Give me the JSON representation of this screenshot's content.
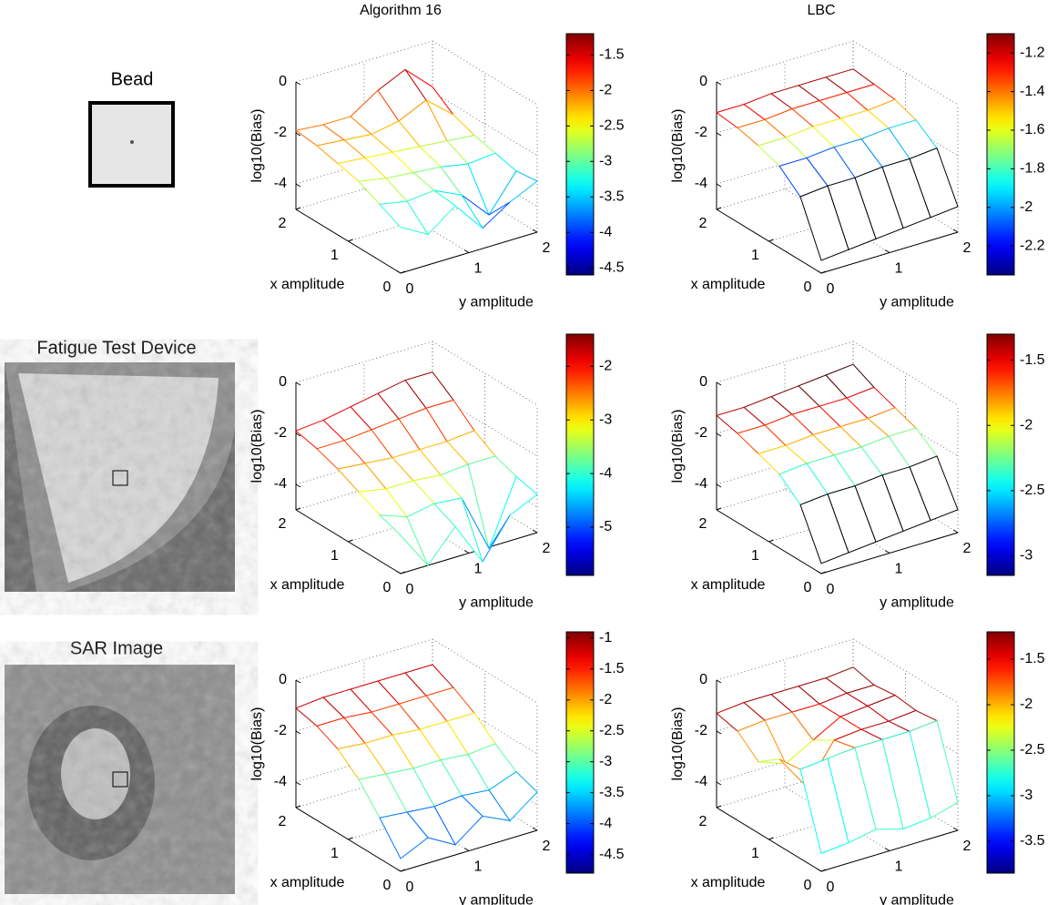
{
  "row_labels": [
    "Bead",
    "Fatigue Test Device",
    "SAR Image"
  ],
  "chart_data": [
    {
      "type": "mesh",
      "title": "Algorithm 16",
      "xlabel": "x amplitude",
      "ylabel": "y amplitude",
      "zlabel": "log10(Bias)",
      "x": [
        0,
        0.4,
        0.8,
        1.2,
        1.6,
        2
      ],
      "y": [
        0,
        0.4,
        0.8,
        1.2,
        1.6,
        2
      ],
      "z": [
        [
          -3.2,
          -3.8,
          -3.0,
          -4.2,
          -3.5,
          -3.0
        ],
        [
          -2.8,
          -3.0,
          -2.9,
          -3.4,
          -4.5,
          -3.1
        ],
        [
          -2.4,
          -2.6,
          -2.7,
          -2.8,
          -3.0,
          -2.9
        ],
        [
          -2.2,
          -2.3,
          -2.4,
          -2.5,
          -2.6,
          -2.7
        ],
        [
          -2.0,
          -2.1,
          -2.2,
          -2.0,
          -1.5,
          -2.4
        ],
        [
          -1.9,
          -2.0,
          -2.0,
          -1.3,
          -0.8,
          -1.8
        ]
      ],
      "xlim": [
        0,
        2
      ],
      "ylim": [
        0,
        2
      ],
      "zlim": [
        -5,
        0
      ],
      "xticks": [
        0,
        1,
        2
      ],
      "yticks": [
        0,
        1,
        2
      ],
      "zticks": [
        -4,
        -2,
        0
      ],
      "grid": true,
      "colormap": "jet",
      "clim": [
        -4.6,
        -1.2
      ],
      "cticks": [
        -4.5,
        -4,
        -3.5,
        -3,
        -2.5,
        -2,
        -1.5
      ]
    },
    {
      "type": "mesh",
      "title": "LBC",
      "xlabel": "x amplitude",
      "ylabel": "y amplitude",
      "zlabel": "log10(Bias)",
      "x": [
        0,
        0.4,
        0.8,
        1.2,
        1.6,
        2
      ],
      "y": [
        0,
        0.4,
        0.8,
        1.2,
        1.6,
        2
      ],
      "z": [
        [
          -4.5,
          -4.4,
          -4.3,
          -4.2,
          -4.1,
          -4.0
        ],
        [
          -2.5,
          -2.4,
          -2.4,
          -2.3,
          -2.3,
          -2.2
        ],
        [
          -1.8,
          -1.8,
          -1.7,
          -1.7,
          -1.6,
          -1.6
        ],
        [
          -1.5,
          -1.5,
          -1.4,
          -1.4,
          -1.4,
          -1.3
        ],
        [
          -1.3,
          -1.3,
          -1.2,
          -1.2,
          -1.2,
          -1.2
        ],
        [
          -1.2,
          -1.2,
          -1.1,
          -1.1,
          -1.1,
          -1.1
        ]
      ],
      "xlim": [
        0,
        2
      ],
      "ylim": [
        0,
        2
      ],
      "zlim": [
        -5,
        0
      ],
      "xticks": [
        0,
        1,
        2
      ],
      "yticks": [
        0,
        1,
        2
      ],
      "zticks": [
        -4,
        -2,
        0
      ],
      "grid": true,
      "colormap": "jet",
      "clim": [
        -2.35,
        -1.1
      ],
      "cticks": [
        -2.2,
        -2,
        -1.8,
        -1.6,
        -1.4,
        -1.2
      ]
    },
    {
      "type": "mesh",
      "xlabel": "x amplitude",
      "ylabel": "y amplitude",
      "zlabel": "log10(Bias)",
      "x": [
        0,
        0.4,
        0.8,
        1.2,
        1.6,
        2
      ],
      "y": [
        0,
        0.4,
        0.8,
        1.2,
        1.6,
        2
      ],
      "z": [
        [
          -3.5,
          -5.0,
          -3.8,
          -5.5,
          -4.0,
          -3.5
        ],
        [
          -3.2,
          -3.6,
          -3.4,
          -3.5,
          -5.8,
          -3.3
        ],
        [
          -2.8,
          -3.0,
          -3.0,
          -3.1,
          -3.0,
          -3.0
        ],
        [
          -2.4,
          -2.5,
          -2.6,
          -2.6,
          -2.6,
          -2.5
        ],
        [
          -2.1,
          -2.1,
          -2.0,
          -1.9,
          -1.8,
          -1.8
        ],
        [
          -1.9,
          -1.8,
          -1.6,
          -1.4,
          -1.2,
          -1.2
        ]
      ],
      "xlim": [
        0,
        2
      ],
      "ylim": [
        0,
        2
      ],
      "zlim": [
        -5,
        0
      ],
      "xticks": [
        0,
        1,
        2
      ],
      "yticks": [
        0,
        1,
        2
      ],
      "zticks": [
        -4,
        -2,
        0
      ],
      "grid": true,
      "colormap": "jet",
      "clim": [
        -5.9,
        -1.4
      ],
      "cticks": [
        -5,
        -4,
        -3,
        -2
      ]
    },
    {
      "type": "mesh",
      "xlabel": "x amplitude",
      "ylabel": "y amplitude",
      "zlabel": "log10(Bias)",
      "x": [
        0,
        0.4,
        0.8,
        1.2,
        1.6,
        2
      ],
      "y": [
        0,
        0.4,
        0.8,
        1.2,
        1.6,
        2
      ],
      "z": [
        [
          -4.6,
          -4.5,
          -4.4,
          -4.3,
          -4.2,
          -4.1
        ],
        [
          -2.8,
          -2.7,
          -2.7,
          -2.6,
          -2.6,
          -2.5
        ],
        [
          -2.1,
          -2.0,
          -2.0,
          -2.0,
          -1.9,
          -1.9
        ],
        [
          -1.8,
          -1.8,
          -1.7,
          -1.7,
          -1.7,
          -1.6
        ],
        [
          -1.5,
          -1.5,
          -1.4,
          -1.4,
          -1.4,
          -1.3
        ],
        [
          -1.3,
          -1.3,
          -1.2,
          -1.1,
          -1.0,
          -0.9
        ]
      ],
      "xlim": [
        0,
        2
      ],
      "ylim": [
        0,
        2
      ],
      "zlim": [
        -5,
        0
      ],
      "xticks": [
        0,
        1,
        2
      ],
      "yticks": [
        0,
        1,
        2
      ],
      "zticks": [
        -4,
        -2,
        0
      ],
      "grid": true,
      "colormap": "jet",
      "clim": [
        -3.15,
        -1.3
      ],
      "cticks": [
        -3,
        -2.5,
        -2,
        -1.5
      ]
    },
    {
      "type": "mesh",
      "xlabel": "x amplitude",
      "ylabel": "y amplitude",
      "zlabel": "log10(Bias)",
      "x": [
        0,
        0.4,
        0.8,
        1.2,
        1.6,
        2
      ],
      "y": [
        0,
        0.4,
        0.8,
        1.2,
        1.6,
        2
      ],
      "z": [
        [
          -4.5,
          -4.0,
          -4.6,
          -3.8,
          -4.3,
          -3.5
        ],
        [
          -3.4,
          -3.5,
          -3.6,
          -3.5,
          -3.6,
          -3.2
        ],
        [
          -2.4,
          -2.5,
          -2.6,
          -2.6,
          -2.7,
          -2.6
        ],
        [
          -1.7,
          -1.8,
          -1.8,
          -1.9,
          -1.9,
          -1.9
        ],
        [
          -1.3,
          -1.3,
          -1.4,
          -1.4,
          -1.4,
          -1.4
        ],
        [
          -1.1,
          -1.0,
          -1.0,
          -1.0,
          -1.0,
          -1.0
        ]
      ],
      "xlim": [
        0,
        2
      ],
      "ylim": [
        0,
        2
      ],
      "zlim": [
        -5,
        0
      ],
      "xticks": [
        0,
        1,
        2
      ],
      "yticks": [
        0,
        1,
        2
      ],
      "zticks": [
        -4,
        -2,
        0
      ],
      "grid": true,
      "colormap": "jet",
      "clim": [
        -4.8,
        -0.9
      ],
      "cticks": [
        -4.5,
        -4,
        -3.5,
        -3,
        -2.5,
        -2,
        -1.5,
        -1
      ]
    },
    {
      "type": "mesh",
      "xlabel": "x amplitude",
      "ylabel": "y amplitude",
      "zlabel": "log10(Bias)",
      "x": [
        0,
        0.4,
        0.8,
        1.2,
        1.6,
        2
      ],
      "y": [
        0,
        0.4,
        0.8,
        1.2,
        1.6,
        2
      ],
      "z": [
        [
          -4.3,
          -4.2,
          -4.0,
          -4.3,
          -4.2,
          -3.9
        ],
        [
          -1.5,
          -1.4,
          -1.3,
          -1.3,
          -1.3,
          -1.2
        ],
        [
          -1.6,
          -3.0,
          -1.5,
          -1.4,
          -1.4,
          -1.3
        ],
        [
          -2.2,
          -2.6,
          -2.0,
          -1.4,
          -1.3,
          -1.2
        ],
        [
          -1.5,
          -1.4,
          -1.4,
          -1.4,
          -1.3,
          -1.3
        ],
        [
          -1.3,
          -1.2,
          -1.2,
          -1.2,
          -1.2,
          -1.1
        ]
      ],
      "xlim": [
        0,
        2
      ],
      "ylim": [
        0,
        2
      ],
      "zlim": [
        -5,
        0
      ],
      "xticks": [
        0,
        1,
        2
      ],
      "yticks": [
        0,
        1,
        2
      ],
      "zticks": [
        -4,
        -2,
        0
      ],
      "grid": true,
      "colormap": "jet",
      "clim": [
        -3.85,
        -1.2
      ],
      "cticks": [
        -3.5,
        -3,
        -2.5,
        -2,
        -1.5
      ]
    }
  ]
}
